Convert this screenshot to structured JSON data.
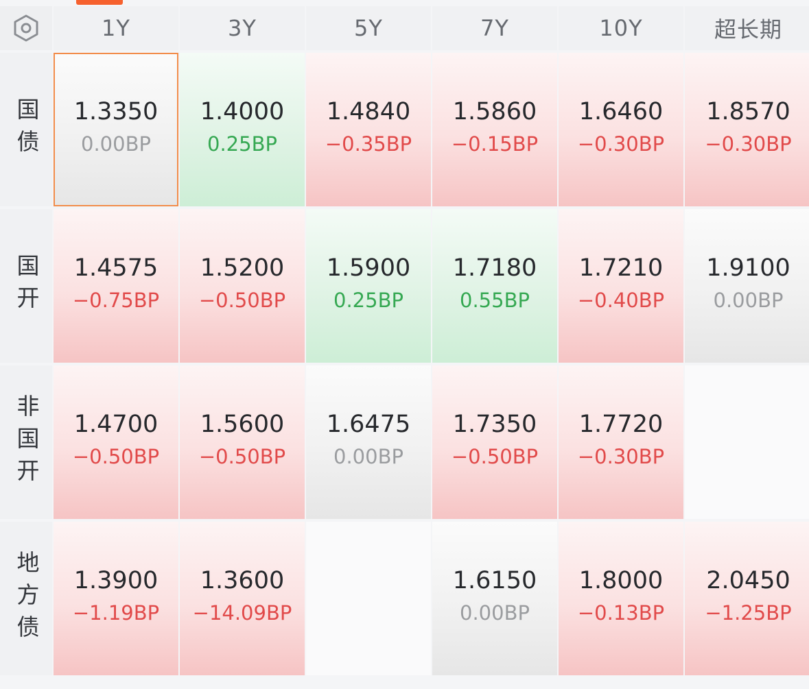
{
  "header": {
    "settings_icon": "hexagon-settings-icon",
    "columns": [
      "1Y",
      "3Y",
      "5Y",
      "7Y",
      "10Y",
      "超长期"
    ]
  },
  "colors": {
    "accent": "#f6612e",
    "down": "#e14a4a",
    "up": "#35a852",
    "flat": "#9a9c9f",
    "selected_border": "#f28c4a"
  },
  "rows": [
    {
      "label": "国债",
      "cells": [
        {
          "yield": "1.3350",
          "change": "0.00BP",
          "trend": "flat",
          "selected": true
        },
        {
          "yield": "1.4000",
          "change": "0.25BP",
          "trend": "up"
        },
        {
          "yield": "1.4840",
          "change": "−0.35BP",
          "trend": "down"
        },
        {
          "yield": "1.5860",
          "change": "−0.15BP",
          "trend": "down"
        },
        {
          "yield": "1.6460",
          "change": "−0.30BP",
          "trend": "down"
        },
        {
          "yield": "1.8570",
          "change": "−0.30BP",
          "trend": "down"
        }
      ]
    },
    {
      "label": "国开",
      "cells": [
        {
          "yield": "1.4575",
          "change": "−0.75BP",
          "trend": "down"
        },
        {
          "yield": "1.5200",
          "change": "−0.50BP",
          "trend": "down"
        },
        {
          "yield": "1.5900",
          "change": "0.25BP",
          "trend": "up"
        },
        {
          "yield": "1.7180",
          "change": "0.55BP",
          "trend": "up"
        },
        {
          "yield": "1.7210",
          "change": "−0.40BP",
          "trend": "down"
        },
        {
          "yield": "1.9100",
          "change": "0.00BP",
          "trend": "flat"
        }
      ]
    },
    {
      "label": "非国开",
      "cells": [
        {
          "yield": "1.4700",
          "change": "−0.50BP",
          "trend": "down"
        },
        {
          "yield": "1.5600",
          "change": "−0.50BP",
          "trend": "down"
        },
        {
          "yield": "1.6475",
          "change": "0.00BP",
          "trend": "flat"
        },
        {
          "yield": "1.7350",
          "change": "−0.50BP",
          "trend": "down"
        },
        {
          "yield": "1.7720",
          "change": "−0.30BP",
          "trend": "down"
        },
        {
          "yield": "",
          "change": "",
          "trend": "empty"
        }
      ]
    },
    {
      "label": "地方债",
      "cells": [
        {
          "yield": "1.3900",
          "change": "−1.19BP",
          "trend": "down"
        },
        {
          "yield": "1.3600",
          "change": "−14.09BP",
          "trend": "down"
        },
        {
          "yield": "",
          "change": "",
          "trend": "empty"
        },
        {
          "yield": "1.6150",
          "change": "0.00BP",
          "trend": "flat"
        },
        {
          "yield": "1.8000",
          "change": "−0.13BP",
          "trend": "down"
        },
        {
          "yield": "2.0450",
          "change": "−1.25BP",
          "trend": "down"
        }
      ]
    }
  ]
}
